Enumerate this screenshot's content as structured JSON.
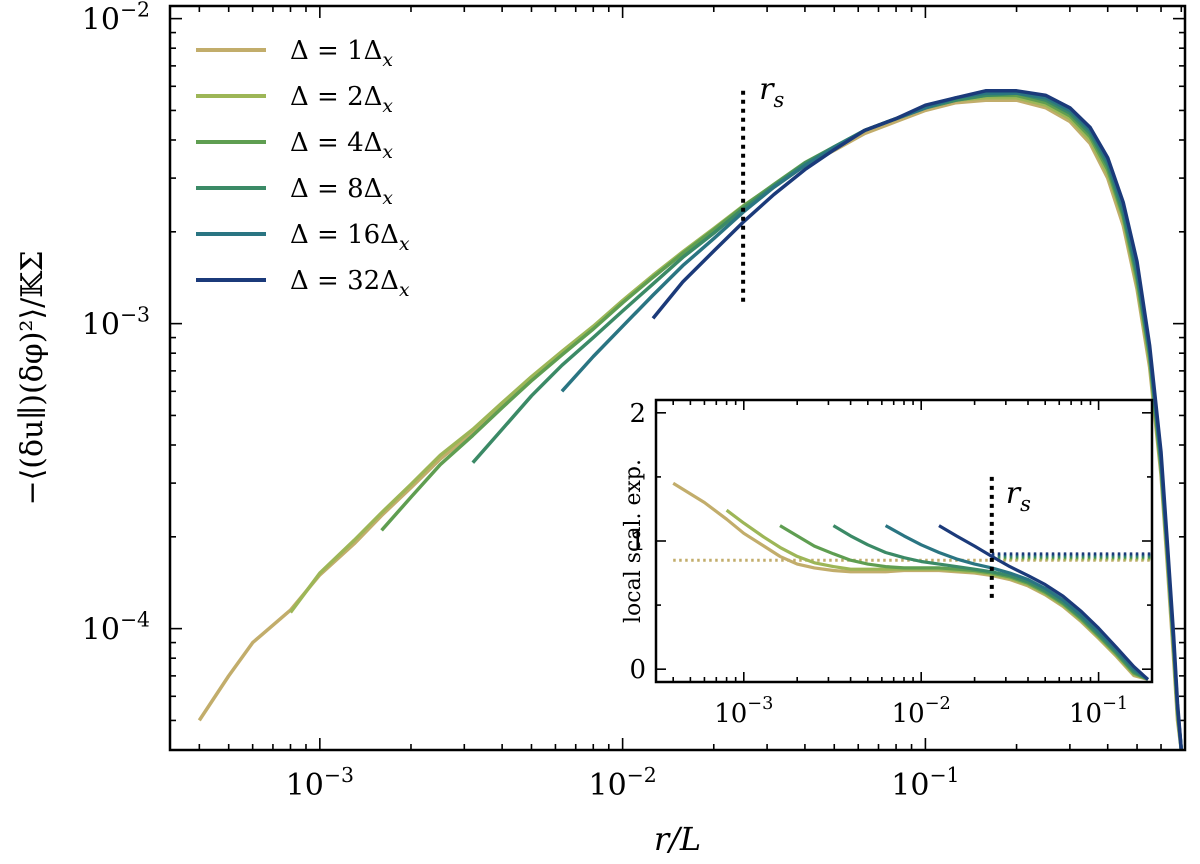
{
  "chart_data": [
    {
      "type": "line",
      "xlabel": "r/L",
      "ylabel": "−⟨(δu∥)(δφ)²⟩/𝕂Σ",
      "xscale": "log",
      "yscale": "log",
      "xlim": [
        0.00032,
        0.72
      ],
      "ylim": [
        4e-05,
        0.011
      ],
      "x_ticklabels": [
        {
          "v": 0.001,
          "base": "10",
          "exp": "−3"
        },
        {
          "v": 0.01,
          "base": "10",
          "exp": "−2"
        },
        {
          "v": 0.1,
          "base": "10",
          "exp": "−1"
        }
      ],
      "y_ticklabels": [
        {
          "v": 0.0001,
          "base": "10",
          "exp": "−4"
        },
        {
          "v": 0.001,
          "base": "10",
          "exp": "−3"
        },
        {
          "v": 0.01,
          "base": "10",
          "exp": "−2"
        }
      ],
      "grid": false,
      "legend_position": "top-left",
      "vline": {
        "x": 0.025,
        "label": "r",
        "sub": "s",
        "y_range": [
          0.00115,
          0.0058
        ]
      },
      "series": [
        {
          "name": "Δ = 1Δx",
          "legend_main": "Δ = 1Δ",
          "legend_sub": "x",
          "color": "#c2ad6b",
          "x": [
            0.0004,
            0.0005,
            0.0006,
            0.0008,
            0.001,
            0.0013,
            0.0016,
            0.002,
            0.0025,
            0.0032,
            0.004,
            0.005,
            0.0063,
            0.008,
            0.01,
            0.0126,
            0.0158,
            0.02,
            0.025,
            0.0316,
            0.04,
            0.05,
            0.063,
            0.08,
            0.1,
            0.126,
            0.158,
            0.2,
            0.25,
            0.3,
            0.35,
            0.4,
            0.45,
            0.5,
            0.55,
            0.6,
            0.63,
            0.66,
            0.68,
            0.7
          ],
          "y": [
            5e-05,
            7e-05,
            9e-05,
            0.000115,
            0.00015,
            0.00019,
            0.000235,
            0.00029,
            0.00036,
            0.00044,
            0.00054,
            0.00066,
            0.0008,
            0.00097,
            0.00118,
            0.00142,
            0.0017,
            0.00203,
            0.0024,
            0.0028,
            0.0033,
            0.0037,
            0.0042,
            0.0046,
            0.005,
            0.0053,
            0.0054,
            0.0054,
            0.0051,
            0.0046,
            0.0039,
            0.003,
            0.0021,
            0.0013,
            0.00072,
            0.00032,
            0.00016,
            8e-05,
            5e-05,
            4e-05
          ]
        },
        {
          "name": "Δ = 2Δx",
          "legend_main": "Δ = 2Δ",
          "legend_sub": "x",
          "color": "#9db657",
          "x": [
            0.0008,
            0.001,
            0.0013,
            0.0016,
            0.002,
            0.0025,
            0.0032,
            0.004,
            0.005,
            0.0063,
            0.008,
            0.01,
            0.0126,
            0.0158,
            0.02,
            0.025,
            0.0316,
            0.04,
            0.05,
            0.063,
            0.08,
            0.1,
            0.126,
            0.158,
            0.2,
            0.25,
            0.3,
            0.35,
            0.4,
            0.45,
            0.5,
            0.55,
            0.6,
            0.63,
            0.66,
            0.68,
            0.7
          ],
          "y": [
            0.000113,
            0.000152,
            0.000195,
            0.00024,
            0.000297,
            0.00037,
            0.00045,
            0.00055,
            0.00067,
            0.00081,
            0.00098,
            0.00119,
            0.00144,
            0.00172,
            0.00205,
            0.00243,
            0.00285,
            0.00335,
            0.00378,
            0.0043,
            0.0047,
            0.0051,
            0.0054,
            0.0055,
            0.0055,
            0.0052,
            0.0047,
            0.004,
            0.0031,
            0.0022,
            0.00135,
            0.00075,
            0.00033,
            0.00017,
            8.5e-05,
            5.2e-05,
            4e-05
          ]
        },
        {
          "name": "Δ = 4Δx",
          "legend_main": "Δ = 4Δ",
          "legend_sub": "x",
          "color": "#5f9e51",
          "x": [
            0.0016,
            0.002,
            0.0025,
            0.0032,
            0.004,
            0.005,
            0.0063,
            0.008,
            0.01,
            0.0126,
            0.0158,
            0.02,
            0.025,
            0.0316,
            0.04,
            0.05,
            0.063,
            0.08,
            0.1,
            0.126,
            0.158,
            0.2,
            0.25,
            0.3,
            0.35,
            0.4,
            0.45,
            0.5,
            0.55,
            0.6,
            0.63,
            0.66,
            0.68,
            0.7
          ],
          "y": [
            0.00021,
            0.00027,
            0.000345,
            0.00043,
            0.00053,
            0.00065,
            0.00079,
            0.00096,
            0.00117,
            0.00142,
            0.0017,
            0.00203,
            0.00242,
            0.00286,
            0.00337,
            0.0038,
            0.0043,
            0.0047,
            0.0051,
            0.0054,
            0.0056,
            0.0056,
            0.0053,
            0.0048,
            0.0041,
            0.0032,
            0.00225,
            0.0014,
            0.00078,
            0.00034,
            0.000175,
            8.8e-05,
            5.4e-05,
            4e-05
          ]
        },
        {
          "name": "Δ = 8Δx",
          "legend_main": "Δ = 8Δ",
          "legend_sub": "x",
          "color": "#3b8a66",
          "x": [
            0.0032,
            0.004,
            0.005,
            0.0063,
            0.008,
            0.01,
            0.0126,
            0.0158,
            0.02,
            0.025,
            0.0316,
            0.04,
            0.05,
            0.063,
            0.08,
            0.1,
            0.126,
            0.158,
            0.2,
            0.25,
            0.3,
            0.35,
            0.4,
            0.45,
            0.5,
            0.55,
            0.6,
            0.63,
            0.66,
            0.68,
            0.7
          ],
          "y": [
            0.00035,
            0.00045,
            0.00058,
            0.00073,
            0.0009,
            0.0011,
            0.00135,
            0.00165,
            0.00198,
            0.00238,
            0.00283,
            0.00335,
            0.0038,
            0.0043,
            0.0047,
            0.0051,
            0.0054,
            0.0056,
            0.0057,
            0.0054,
            0.0049,
            0.0042,
            0.0033,
            0.0023,
            0.00145,
            0.0008,
            0.00035,
            0.00018,
            9e-05,
            5.5e-05,
            4e-05
          ]
        },
        {
          "name": "Δ = 16Δx",
          "legend_main": "Δ = 16Δ",
          "legend_sub": "x",
          "color": "#2a7582",
          "x": [
            0.0063,
            0.008,
            0.01,
            0.0126,
            0.0158,
            0.02,
            0.025,
            0.0316,
            0.04,
            0.05,
            0.063,
            0.08,
            0.1,
            0.126,
            0.158,
            0.2,
            0.25,
            0.3,
            0.35,
            0.4,
            0.45,
            0.5,
            0.55,
            0.6,
            0.63,
            0.66,
            0.68,
            0.7
          ],
          "y": [
            0.0006,
            0.00078,
            0.00098,
            0.00124,
            0.00155,
            0.0019,
            0.00232,
            0.0028,
            0.0033,
            0.00378,
            0.0043,
            0.0047,
            0.0051,
            0.0055,
            0.0057,
            0.0057,
            0.0055,
            0.005,
            0.0043,
            0.0034,
            0.0024,
            0.0015,
            0.00082,
            0.00036,
            0.00018,
            9e-05,
            5.5e-05,
            4e-05
          ]
        },
        {
          "name": "Δ = 32Δx",
          "legend_main": "Δ = 32Δ",
          "legend_sub": "x",
          "color": "#1b3a7a",
          "x": [
            0.0126,
            0.0158,
            0.02,
            0.025,
            0.0316,
            0.04,
            0.05,
            0.063,
            0.08,
            0.1,
            0.126,
            0.158,
            0.2,
            0.25,
            0.3,
            0.35,
            0.4,
            0.45,
            0.5,
            0.55,
            0.6,
            0.63,
            0.66,
            0.68,
            0.7
          ],
          "y": [
            0.00104,
            0.00137,
            0.00173,
            0.00215,
            0.00265,
            0.0032,
            0.00372,
            0.0043,
            0.0047,
            0.0052,
            0.0055,
            0.0058,
            0.0058,
            0.0056,
            0.0051,
            0.0044,
            0.0035,
            0.0025,
            0.0016,
            0.00085,
            0.00038,
            0.00019,
            9.5e-05,
            5.7e-05,
            4e-05
          ]
        }
      ]
    },
    {
      "type": "line",
      "inset": true,
      "ylabel": "local scal. exp.",
      "xscale": "log",
      "xlim": [
        0.00032,
        0.2
      ],
      "ylim": [
        -0.1,
        2.1
      ],
      "x_ticklabels": [
        {
          "v": 0.001,
          "base": "10",
          "exp": "−3"
        },
        {
          "v": 0.01,
          "base": "10",
          "exp": "−2"
        },
        {
          "v": 0.1,
          "base": "10",
          "exp": "−1"
        }
      ],
      "y_ticklabels": [
        {
          "v": 0,
          "text": "0"
        },
        {
          "v": 1,
          "text": "1"
        },
        {
          "v": 2,
          "text": "2"
        }
      ],
      "vline": {
        "x": 0.025,
        "label": "r",
        "sub": "s",
        "y_range": [
          0.55,
          1.5
        ]
      },
      "reference_lines": [
        {
          "color": "#c2ad6b",
          "y": 0.85,
          "x_start": 0.0004
        },
        {
          "color": "#9db657",
          "y": 0.86,
          "x_start": 0.025
        },
        {
          "color": "#5f9e51",
          "y": 0.87,
          "x_start": 0.025
        },
        {
          "color": "#3b8a66",
          "y": 0.88,
          "x_start": 0.025
        },
        {
          "color": "#2a7582",
          "y": 0.89,
          "x_start": 0.025
        },
        {
          "color": "#1b3a7a",
          "y": 0.9,
          "x_start": 0.025
        }
      ],
      "series": [
        {
          "color": "#c2ad6b",
          "x": [
            0.0004,
            0.0006,
            0.0008,
            0.001,
            0.0013,
            0.0016,
            0.002,
            0.0025,
            0.0032,
            0.004,
            0.005,
            0.0063,
            0.008,
            0.01,
            0.0126,
            0.0158,
            0.02,
            0.025,
            0.0316,
            0.04,
            0.05,
            0.063,
            0.08,
            0.1,
            0.126,
            0.158,
            0.19
          ],
          "y": [
            1.45,
            1.3,
            1.17,
            1.06,
            0.96,
            0.88,
            0.82,
            0.79,
            0.77,
            0.76,
            0.76,
            0.76,
            0.77,
            0.77,
            0.77,
            0.76,
            0.75,
            0.73,
            0.7,
            0.65,
            0.58,
            0.49,
            0.37,
            0.24,
            0.1,
            -0.05,
            -0.08
          ]
        },
        {
          "color": "#9db657",
          "x": [
            0.0008,
            0.001,
            0.0013,
            0.0016,
            0.002,
            0.0025,
            0.0032,
            0.004,
            0.005,
            0.0063,
            0.008,
            0.01,
            0.0126,
            0.0158,
            0.02,
            0.025,
            0.0316,
            0.04,
            0.05,
            0.063,
            0.08,
            0.1,
            0.126,
            0.158,
            0.19
          ],
          "y": [
            1.24,
            1.14,
            1.03,
            0.95,
            0.88,
            0.83,
            0.8,
            0.78,
            0.78,
            0.78,
            0.78,
            0.78,
            0.78,
            0.77,
            0.76,
            0.74,
            0.71,
            0.66,
            0.59,
            0.5,
            0.38,
            0.25,
            0.11,
            -0.04,
            -0.08
          ]
        },
        {
          "color": "#5f9e51",
          "x": [
            0.0016,
            0.002,
            0.0025,
            0.0032,
            0.004,
            0.005,
            0.0063,
            0.008,
            0.01,
            0.0126,
            0.0158,
            0.02,
            0.025,
            0.0316,
            0.04,
            0.05,
            0.063,
            0.08,
            0.1,
            0.126,
            0.158,
            0.19
          ],
          "y": [
            1.12,
            1.04,
            0.96,
            0.9,
            0.85,
            0.82,
            0.8,
            0.79,
            0.79,
            0.79,
            0.78,
            0.77,
            0.75,
            0.72,
            0.67,
            0.6,
            0.51,
            0.39,
            0.26,
            0.12,
            -0.03,
            -0.08
          ]
        },
        {
          "color": "#3b8a66",
          "x": [
            0.0032,
            0.004,
            0.005,
            0.0063,
            0.008,
            0.01,
            0.0126,
            0.0158,
            0.02,
            0.025,
            0.0316,
            0.04,
            0.05,
            0.063,
            0.08,
            0.1,
            0.126,
            0.158,
            0.19
          ],
          "y": [
            1.12,
            1.04,
            0.97,
            0.91,
            0.87,
            0.84,
            0.82,
            0.8,
            0.78,
            0.76,
            0.73,
            0.68,
            0.61,
            0.52,
            0.4,
            0.27,
            0.13,
            -0.02,
            -0.08
          ]
        },
        {
          "color": "#2a7582",
          "x": [
            0.0063,
            0.008,
            0.01,
            0.0126,
            0.0158,
            0.02,
            0.025,
            0.0316,
            0.04,
            0.05,
            0.063,
            0.08,
            0.1,
            0.126,
            0.158,
            0.19
          ],
          "y": [
            1.12,
            1.04,
            0.97,
            0.91,
            0.86,
            0.82,
            0.79,
            0.75,
            0.7,
            0.63,
            0.54,
            0.42,
            0.29,
            0.15,
            0.0,
            -0.08
          ]
        },
        {
          "color": "#1b3a7a",
          "x": [
            0.0126,
            0.0158,
            0.02,
            0.025,
            0.0316,
            0.04,
            0.05,
            0.063,
            0.08,
            0.1,
            0.126,
            0.158,
            0.19
          ],
          "y": [
            1.12,
            1.04,
            0.96,
            0.88,
            0.8,
            0.73,
            0.66,
            0.57,
            0.45,
            0.32,
            0.17,
            0.02,
            -0.08
          ]
        }
      ]
    }
  ]
}
